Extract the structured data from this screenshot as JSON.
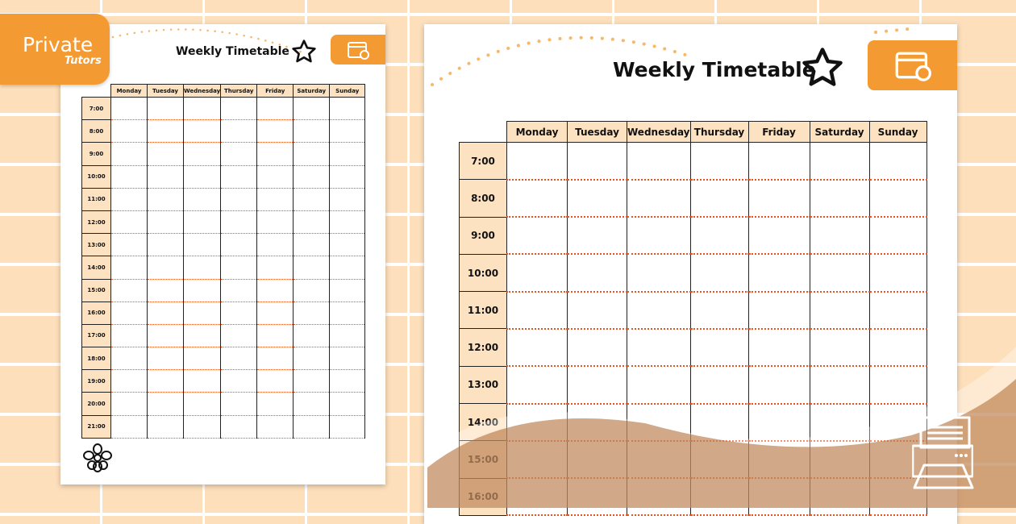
{
  "brand": {
    "name": "Private",
    "sub": "Tutors"
  },
  "title": "Weekly Timetable",
  "days": [
    "Monday",
    "Tuesday",
    "Wednesday",
    "Thursday",
    "Friday",
    "Saturday",
    "Sunday"
  ],
  "left_times": [
    "7:00",
    "8:00",
    "9:00",
    "10:00",
    "11:00",
    "12:00",
    "13:00",
    "14:00",
    "15:00",
    "16:00",
    "17:00",
    "18:00",
    "19:00",
    "20:00",
    "21:00"
  ],
  "right_times": [
    "7:00",
    "8:00",
    "9:00",
    "10:00",
    "11:00",
    "12:00",
    "13:00",
    "14:00",
    "15:00",
    "16:00"
  ],
  "colors": {
    "accent": "#f39a32",
    "header_fill": "#fde2c2",
    "background": "#fddfbb",
    "dotted_line": "#e8541e"
  },
  "icons": [
    "star-icon",
    "calendar-icon",
    "flower-icon",
    "printer-icon"
  ]
}
